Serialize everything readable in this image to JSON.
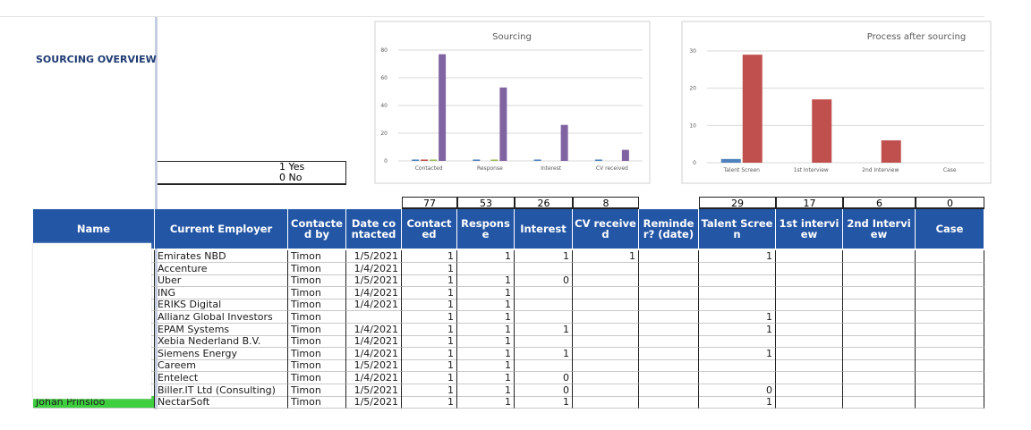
{
  "heading": "SOURCING OVERVIEW",
  "key": [
    "1 Yes",
    "0 No"
  ],
  "chart_data": [
    {
      "type": "bar",
      "title": "Sourcing",
      "categories": [
        "Contacted",
        "Response",
        "Interest",
        "CV received"
      ],
      "series": [
        {
          "color": "#4f81bd",
          "values": [
            1,
            1,
            1,
            1
          ]
        },
        {
          "color": "#c0504d",
          "values": [
            1,
            0,
            0,
            0
          ]
        },
        {
          "color": "#9bbb59",
          "values": [
            1,
            1,
            0,
            0
          ]
        },
        {
          "color": "#8064a2",
          "values": [
            77,
            53,
            26,
            8
          ]
        }
      ],
      "ylim": [
        0,
        80
      ],
      "yticks": [
        0,
        20,
        40,
        60,
        80
      ],
      "grid": true
    },
    {
      "type": "bar",
      "title": "Process after sourcing",
      "categories": [
        "Talent Screen",
        "1st Interview",
        "2nd Interview",
        "Case"
      ],
      "series": [
        {
          "color": "#4f81bd",
          "values": [
            1,
            0,
            0,
            0
          ]
        },
        {
          "color": "#c0504d",
          "values": [
            29,
            17,
            6,
            0
          ]
        }
      ],
      "ylim": [
        0,
        30
      ],
      "yticks": [
        0,
        10,
        20,
        30
      ],
      "grid": true
    }
  ],
  "table": {
    "header": [
      "Name",
      "Current Employer",
      "Contacted by",
      "Date contacted",
      "Contacted",
      "Response",
      "Interest",
      "CV received",
      "Reminder? (date)",
      "Talent Screen",
      "1st interview",
      "2nd Interview",
      "Case"
    ],
    "totals": [
      null,
      null,
      null,
      null,
      77,
      53,
      26,
      8,
      null,
      29,
      17,
      6,
      0
    ],
    "rows": [
      [
        null,
        "Emirates NBD",
        "Timon",
        "1/5/2021",
        1,
        1,
        1,
        1,
        null,
        1,
        null,
        null,
        null
      ],
      [
        null,
        "Accenture",
        "Timon",
        "1/4/2021",
        1,
        null,
        null,
        null,
        null,
        null,
        null,
        null,
        null
      ],
      [
        null,
        "Uber",
        "Timon",
        "1/5/2021",
        1,
        1,
        0,
        null,
        null,
        null,
        null,
        null,
        null
      ],
      [
        null,
        "ING",
        "Timon",
        "1/4/2021",
        1,
        1,
        null,
        null,
        null,
        null,
        null,
        null,
        null
      ],
      [
        null,
        "ERIKS Digital",
        "Timon",
        "1/4/2021",
        1,
        1,
        null,
        null,
        null,
        null,
        null,
        null,
        null
      ],
      [
        null,
        "Allianz Global Investors",
        "Timon",
        null,
        1,
        1,
        null,
        null,
        null,
        1,
        null,
        null,
        null
      ],
      [
        null,
        "EPAM Systems",
        "Timon",
        "1/4/2021",
        1,
        1,
        1,
        null,
        null,
        1,
        null,
        null,
        null
      ],
      [
        null,
        "Xebia Nederland B.V.",
        "Timon",
        "1/4/2021",
        1,
        1,
        null,
        null,
        null,
        null,
        null,
        null,
        null
      ],
      [
        null,
        "Siemens Energy",
        "Timon",
        "1/4/2021",
        1,
        1,
        1,
        null,
        null,
        1,
        null,
        null,
        null
      ],
      [
        null,
        "Careem",
        "Timon",
        "1/5/2021",
        1,
        1,
        null,
        null,
        null,
        null,
        null,
        null,
        null
      ],
      [
        null,
        "Entelect",
        "Timon",
        "1/4/2021",
        1,
        1,
        0,
        null,
        null,
        null,
        null,
        null,
        null
      ],
      [
        null,
        "Biller.IT Ltd (Consulting)",
        "Timon",
        "1/5/2021",
        1,
        1,
        0,
        null,
        null,
        0,
        null,
        null,
        null
      ],
      [
        "Johan Prinsloo",
        "NectarSoft",
        "Timon",
        "1/5/2021",
        1,
        1,
        1,
        null,
        null,
        1,
        null,
        null,
        null
      ]
    ]
  }
}
